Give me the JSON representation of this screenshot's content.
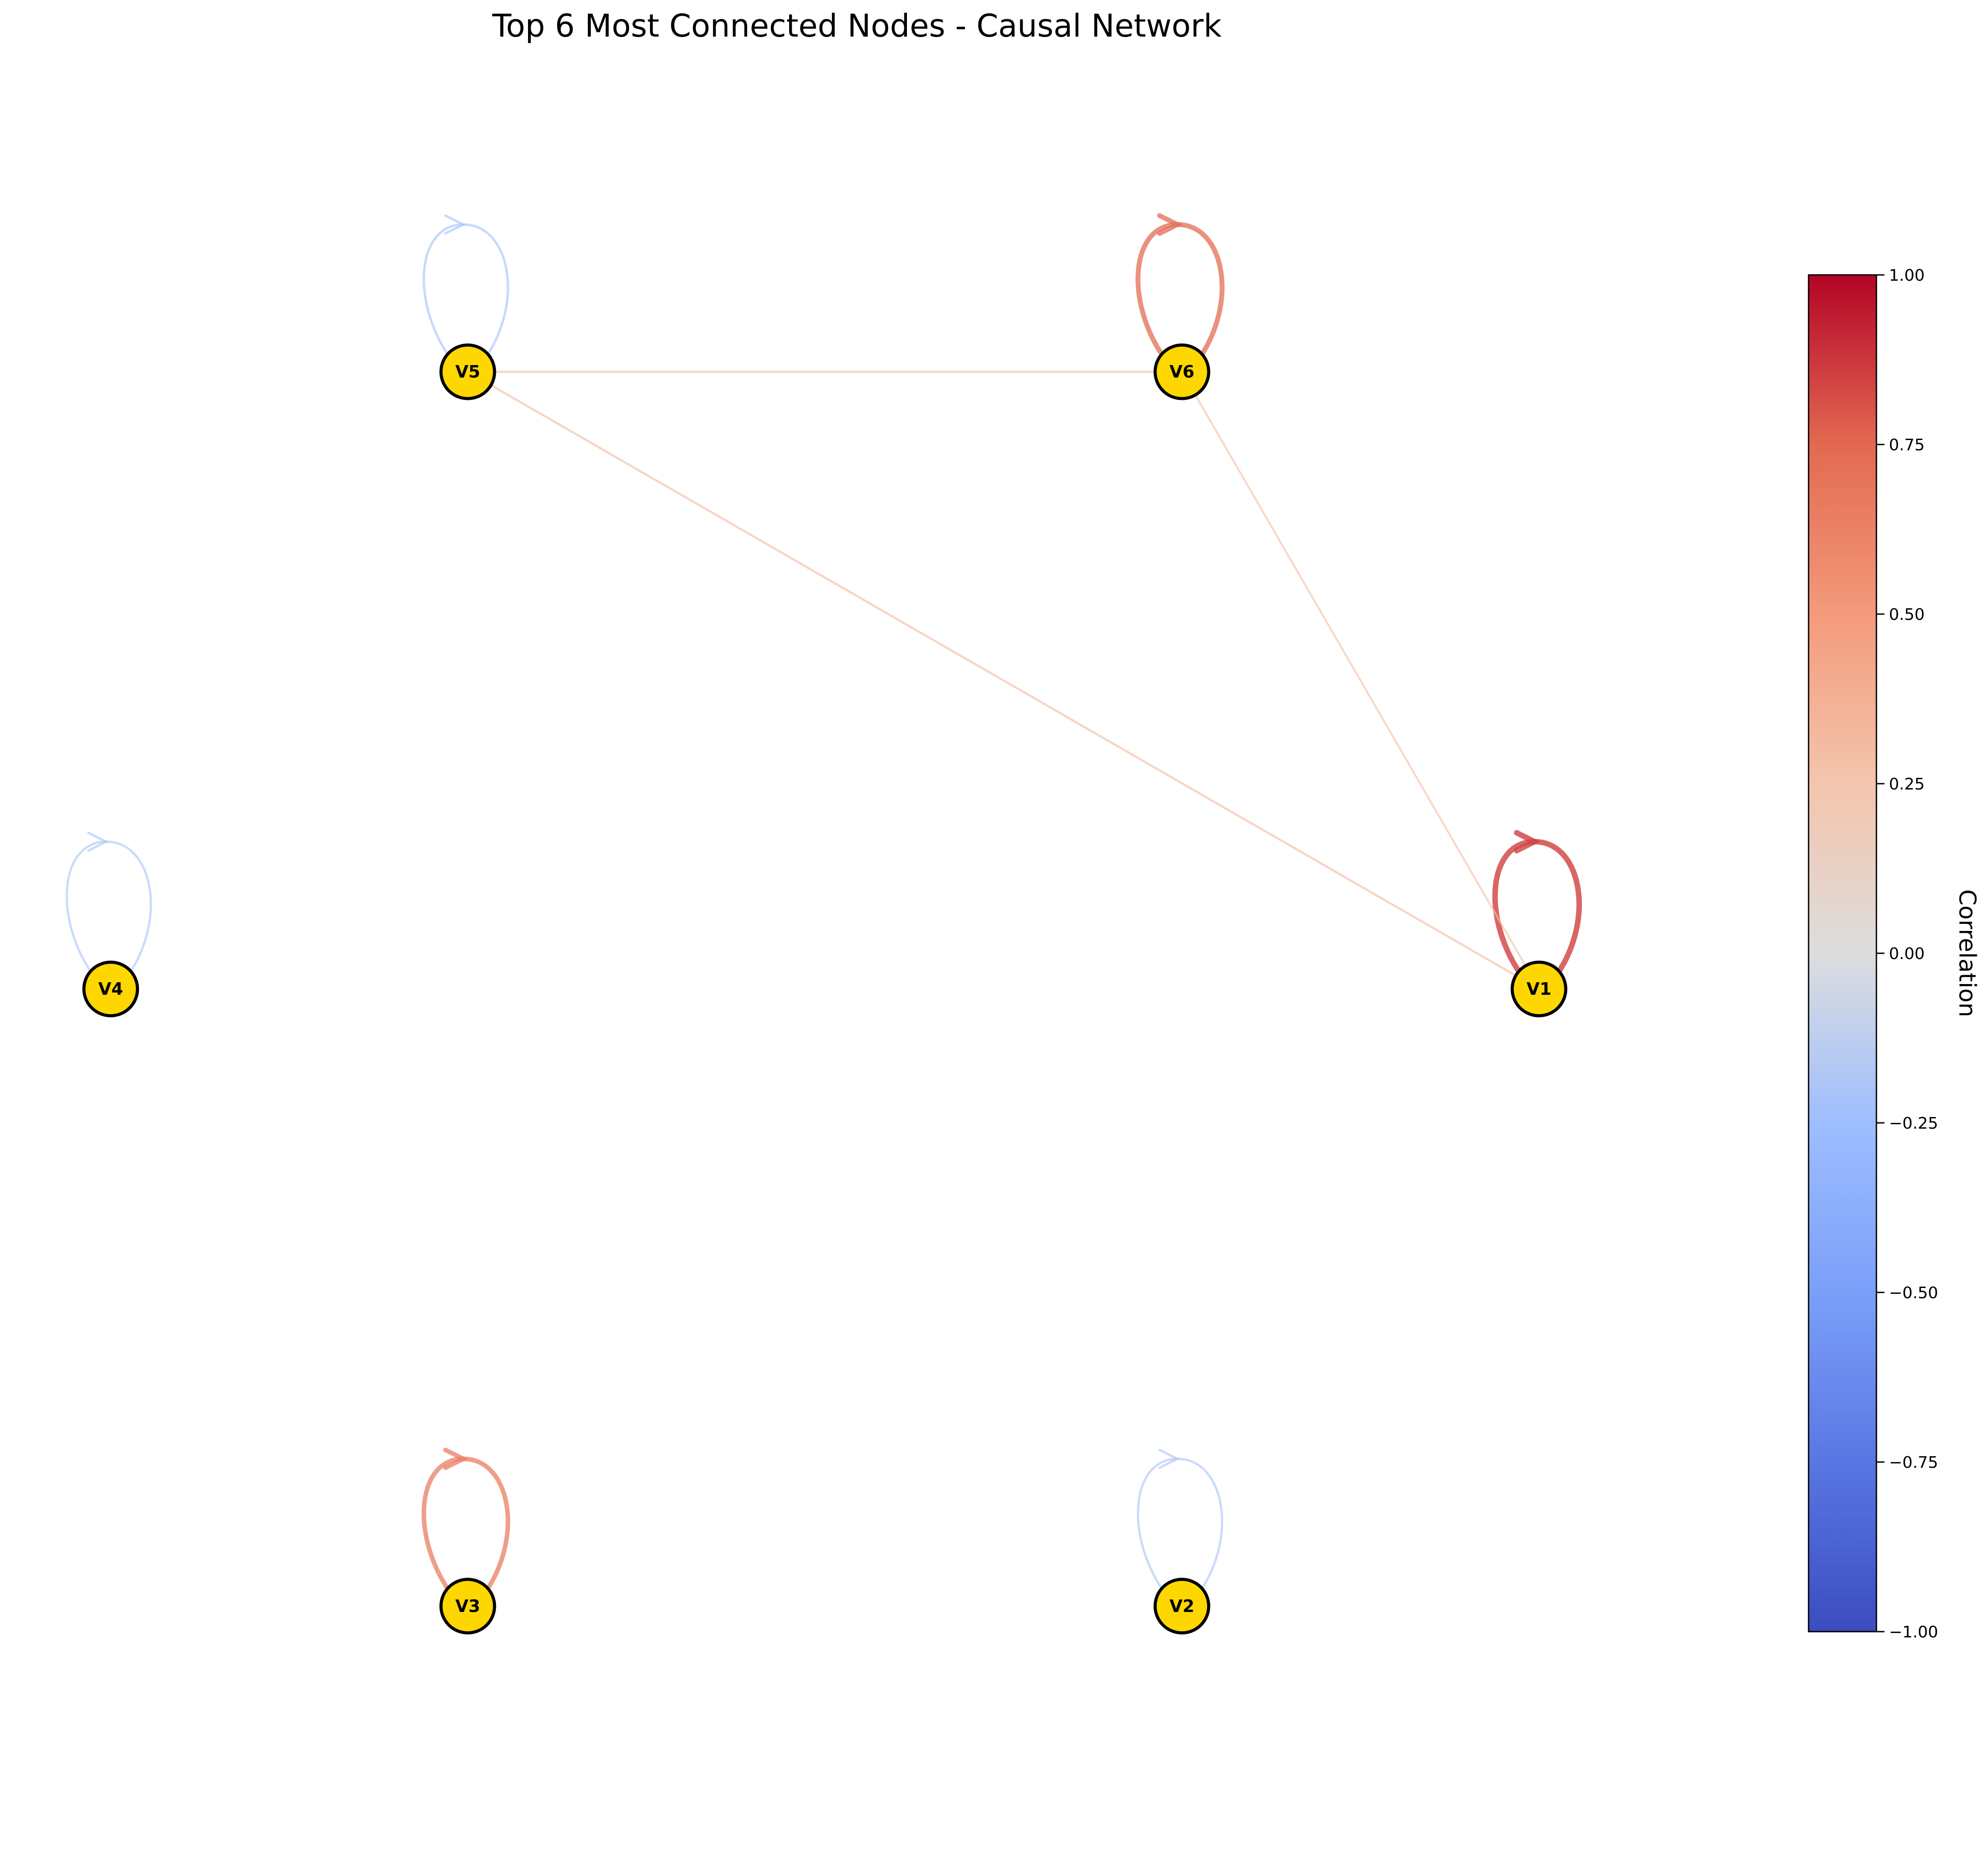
{
  "title": "Top 6 Most Connected Nodes - Causal Network",
  "colorbar": {
    "label": "Correlation",
    "colormap": "coolwarm",
    "range": [
      -1,
      1
    ],
    "ticks": [
      {
        "value": 1.0,
        "label": "1.00"
      },
      {
        "value": 0.75,
        "label": "0.75"
      },
      {
        "value": 0.5,
        "label": "0.50"
      },
      {
        "value": 0.25,
        "label": "0.25"
      },
      {
        "value": 0.0,
        "label": "0.00"
      },
      {
        "value": -0.25,
        "label": "−0.25"
      },
      {
        "value": -0.5,
        "label": "−0.50"
      },
      {
        "value": -0.75,
        "label": "−0.75"
      },
      {
        "value": -1.0,
        "label": "−1.00"
      }
    ]
  },
  "node_style": {
    "fill": "#ffd700",
    "stroke": "#000000"
  },
  "nodes": [
    {
      "id": "V1",
      "label": "V1"
    },
    {
      "id": "V2",
      "label": "V2"
    },
    {
      "id": "V3",
      "label": "V3"
    },
    {
      "id": "V4",
      "label": "V4"
    },
    {
      "id": "V5",
      "label": "V5"
    },
    {
      "id": "V6",
      "label": "V6"
    }
  ],
  "edges": [
    {
      "source": "V1",
      "target": "V1",
      "correlation": 0.85
    },
    {
      "source": "V2",
      "target": "V2",
      "correlation": -0.2
    },
    {
      "source": "V3",
      "target": "V3",
      "correlation": 0.65
    },
    {
      "source": "V4",
      "target": "V4",
      "correlation": -0.2
    },
    {
      "source": "V5",
      "target": "V5",
      "correlation": -0.22
    },
    {
      "source": "V6",
      "target": "V6",
      "correlation": 0.72
    },
    {
      "source": "V1",
      "target": "V5",
      "correlation": 0.3
    },
    {
      "source": "V1",
      "target": "V6",
      "correlation": 0.27
    },
    {
      "source": "V5",
      "target": "V6",
      "correlation": 0.3
    }
  ]
}
